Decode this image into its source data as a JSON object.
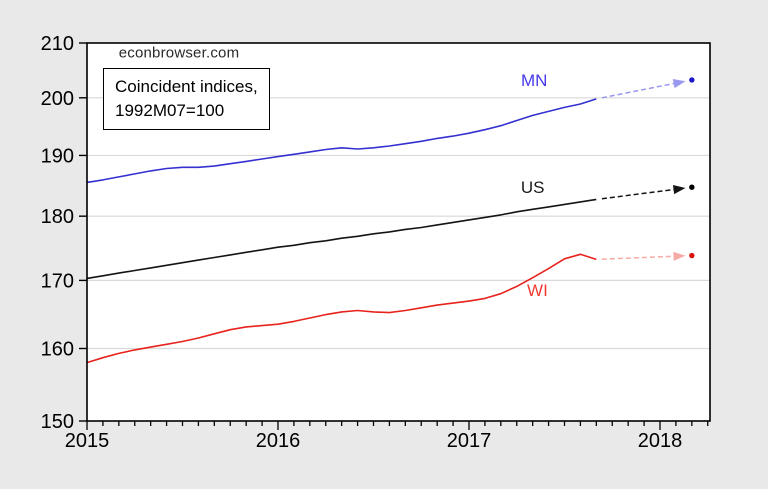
{
  "watermark": "econbrowser.com",
  "annotation_box": {
    "line1": "Coincident indices,",
    "line2": "1992M07=100"
  },
  "colors": {
    "outer_background": "#e9e9e9",
    "plot_background": "#ffffff",
    "gridline": "#d9d9d9",
    "frame": "#000000",
    "axis_text": "#000000"
  },
  "chart_data": {
    "type": "line",
    "title": "Coincident indices, 1992M07=100",
    "y_scale": "log",
    "ylim": [
      150,
      210
    ],
    "y_ticks": [
      150,
      160,
      170,
      180,
      190,
      200,
      210
    ],
    "gridlines": [
      160,
      170,
      180,
      190,
      200
    ],
    "x_year_labels": [
      "2015",
      "2016",
      "2017",
      "2018"
    ],
    "x_minor_tick_unit": "month",
    "x_range_months": [
      "2015M01",
      "2018M04"
    ],
    "solid_end_month": "2017M09",
    "forecast_note": "dashed arrow = 6-month-ahead forecast ending in dot at 2018M03",
    "months": [
      "2015M01",
      "2015M02",
      "2015M03",
      "2015M04",
      "2015M05",
      "2015M06",
      "2015M07",
      "2015M08",
      "2015M09",
      "2015M10",
      "2015M11",
      "2015M12",
      "2016M01",
      "2016M02",
      "2016M03",
      "2016M04",
      "2016M05",
      "2016M06",
      "2016M07",
      "2016M08",
      "2016M09",
      "2016M10",
      "2016M11",
      "2016M12",
      "2017M01",
      "2017M02",
      "2017M03",
      "2017M04",
      "2017M05",
      "2017M06",
      "2017M07",
      "2017M08",
      "2017M09"
    ],
    "series": [
      {
        "name": "MN",
        "color": "#3431d0",
        "label_color": "#4639e8",
        "forecast_color": "#9a98ef",
        "dot_color": "#1b18c8",
        "values": [
          185.5,
          185.9,
          186.4,
          186.9,
          187.4,
          187.8,
          188.0,
          188.0,
          188.2,
          188.6,
          189.0,
          189.4,
          189.8,
          190.2,
          190.6,
          191.0,
          191.3,
          191.1,
          191.3,
          191.6,
          192.0,
          192.4,
          192.9,
          193.3,
          193.8,
          194.4,
          195.1,
          196.0,
          196.9,
          197.6,
          198.3,
          198.9,
          199.8
        ],
        "forecast": {
          "month": "2018M03",
          "value": 203.2
        },
        "label_pos": {
          "month_index": 28.1,
          "value": 203.0
        }
      },
      {
        "name": "US",
        "color": "#141414",
        "label_color": "#1a1a1a",
        "forecast_color": "#141414",
        "dot_color": "#000000",
        "values": [
          170.3,
          170.7,
          171.1,
          171.5,
          171.9,
          172.3,
          172.7,
          173.1,
          173.5,
          173.9,
          174.3,
          174.7,
          175.1,
          175.4,
          175.8,
          176.1,
          176.5,
          176.8,
          177.2,
          177.5,
          177.9,
          178.2,
          178.6,
          179.0,
          179.4,
          179.8,
          180.2,
          180.7,
          181.1,
          181.5,
          181.9,
          182.3,
          182.7
        ],
        "forecast": {
          "month": "2018M03",
          "value": 184.7
        },
        "label_pos": {
          "month_index": 28.0,
          "value": 184.6
        }
      },
      {
        "name": "WI",
        "color": "#e8221c",
        "label_color": "#ee3b33",
        "forecast_color": "#f5aaa6",
        "dot_color": "#d9130f",
        "values": [
          158.0,
          158.7,
          159.3,
          159.8,
          160.2,
          160.6,
          161.0,
          161.5,
          162.1,
          162.7,
          163.1,
          163.3,
          163.5,
          163.9,
          164.4,
          164.9,
          165.3,
          165.5,
          165.3,
          165.2,
          165.5,
          165.9,
          166.3,
          166.6,
          166.9,
          167.3,
          168.0,
          169.1,
          170.4,
          171.8,
          173.3,
          174.0,
          173.2
        ],
        "forecast": {
          "month": "2018M03",
          "value": 173.8
        },
        "label_pos": {
          "month_index": 28.3,
          "value": 168.4
        }
      }
    ]
  }
}
